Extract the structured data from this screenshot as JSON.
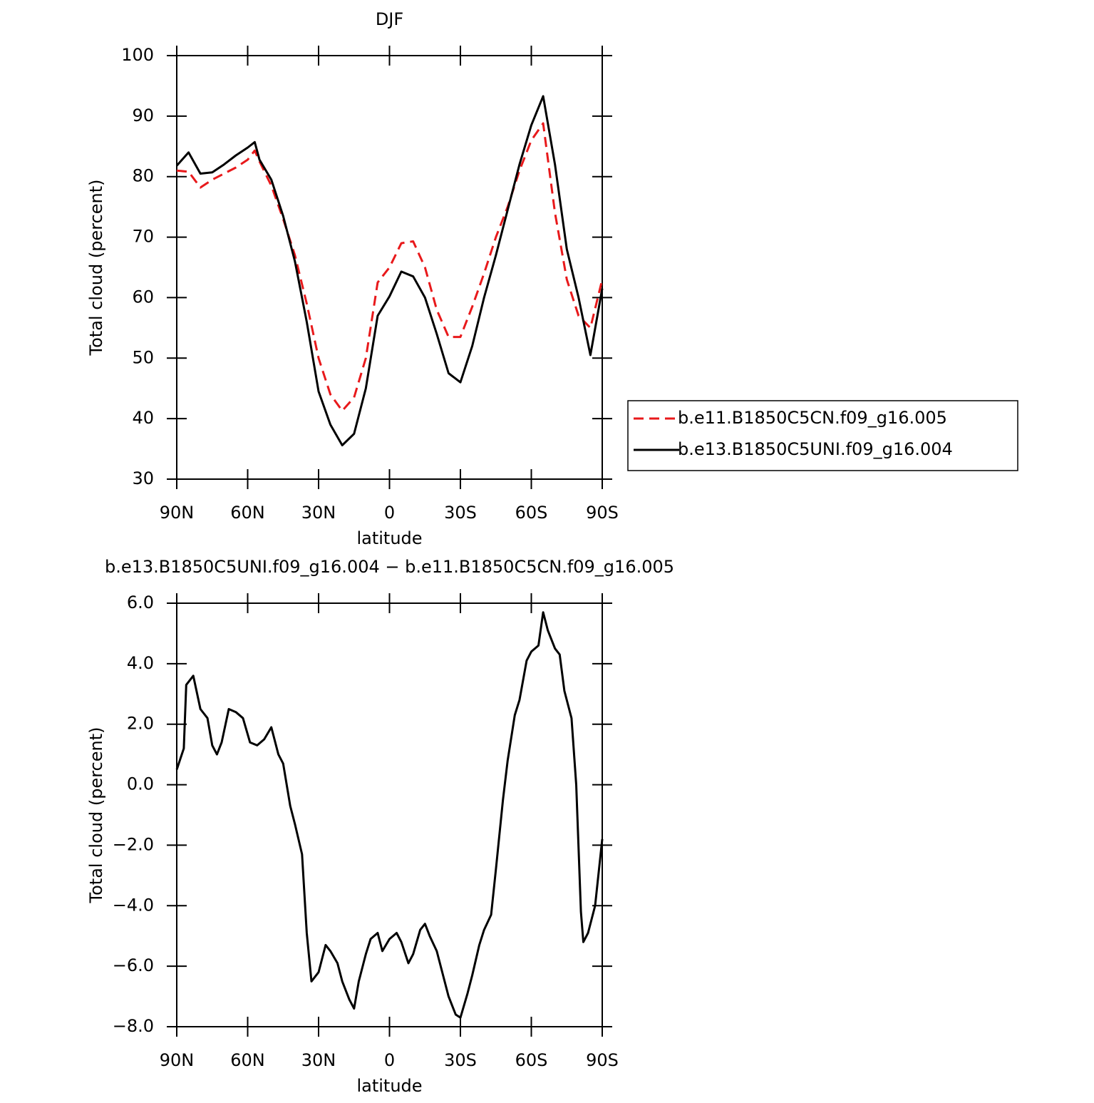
{
  "chart_data": [
    {
      "type": "line",
      "title": "DJF",
      "x_label": "latitude",
      "y_label": "Total cloud (percent)",
      "xlim": [
        90,
        -90
      ],
      "xticks": [
        {
          "value": 90,
          "label": "90N"
        },
        {
          "value": 60,
          "label": "60N"
        },
        {
          "value": 30,
          "label": "30N"
        },
        0,
        {
          "value": -30,
          "label": "30S"
        },
        {
          "value": -60,
          "label": "60S"
        },
        {
          "value": -90,
          "label": "90S"
        }
      ],
      "ylim": [
        30,
        100
      ],
      "yticks": [
        30,
        40,
        50,
        60,
        70,
        80,
        90,
        100
      ],
      "legend": "right",
      "x": [
        90,
        85,
        80,
        75,
        70,
        65,
        60,
        57,
        55,
        50,
        45,
        40,
        35,
        30,
        25,
        20,
        15,
        10,
        5,
        0,
        -5,
        -10,
        -15,
        -20,
        -25,
        -30,
        -35,
        -40,
        -45,
        -50,
        -55,
        -60,
        -65,
        -70,
        -75,
        -80,
        -85,
        -90
      ],
      "series": [
        {
          "name": "b.e11.B1850C5CN.f09_g16.005",
          "color": "#e8191b",
          "dash": true,
          "values": [
            81,
            80.8,
            78.2,
            79.5,
            80.5,
            81.5,
            82.8,
            84.3,
            82.5,
            78.5,
            73,
            67,
            59,
            50,
            44,
            41.3,
            43.5,
            50,
            62.5,
            65,
            69,
            69.3,
            65,
            58,
            53.5,
            53.5,
            58.5,
            64,
            70,
            75,
            81,
            86,
            88.8,
            74,
            63,
            57,
            55,
            63
          ]
        },
        {
          "name": "b.e13.B1850C5UNI.f09_g16.004",
          "color": "#000000",
          "dash": false,
          "values": [
            81.8,
            84,
            80.5,
            80.7,
            82,
            83.5,
            84.8,
            85.7,
            82.8,
            79.5,
            73.5,
            66,
            56,
            44.5,
            39,
            35.6,
            37.5,
            45,
            57,
            60.2,
            64.3,
            63.5,
            60,
            54,
            47.5,
            46,
            52,
            60,
            67,
            74.5,
            82,
            88.5,
            93.3,
            82,
            68,
            60,
            50.5,
            61.5
          ]
        }
      ]
    },
    {
      "type": "line",
      "title": "b.e13.B1850C5UNI.f09_g16.004 − b.e11.B1850C5CN.f09_g16.005",
      "x_label": "latitude",
      "y_label": "Total cloud (percent)",
      "xlim": [
        90,
        -90
      ],
      "xticks": [
        {
          "value": 90,
          "label": "90N"
        },
        {
          "value": 60,
          "label": "60N"
        },
        {
          "value": 30,
          "label": "30N"
        },
        0,
        {
          "value": -30,
          "label": "30S"
        },
        {
          "value": -60,
          "label": "60S"
        },
        {
          "value": -90,
          "label": "90S"
        }
      ],
      "ylim": [
        -8,
        6
      ],
      "yticks": [
        {
          "value": -8,
          "label": "−8.0"
        },
        {
          "value": -6,
          "label": "−6.0"
        },
        {
          "value": -4,
          "label": "−4.0"
        },
        {
          "value": -2,
          "label": "−2.0"
        },
        {
          "value": 0,
          "label": "0.0"
        },
        {
          "value": 2,
          "label": "2.0"
        },
        {
          "value": 4,
          "label": "4.0"
        },
        {
          "value": 6,
          "label": "6.0"
        }
      ],
      "x": [
        90,
        87,
        86,
        83,
        80,
        77,
        75,
        73,
        71,
        68,
        65,
        62,
        59,
        56,
        53,
        50,
        47,
        45,
        42,
        40,
        37,
        35,
        33,
        30,
        27,
        25,
        22,
        20,
        17,
        15,
        13,
        10,
        8,
        5,
        3,
        0,
        -3,
        -5,
        -8,
        -10,
        -13,
        -15,
        -17,
        -20,
        -25,
        -28,
        -30,
        -33,
        -35,
        -38,
        -40,
        -43,
        -45,
        -48,
        -50,
        -53,
        -55,
        -58,
        -60,
        -63,
        -65,
        -67,
        -70,
        -72,
        -74,
        -77,
        -79,
        -81,
        -82,
        -84,
        -87,
        -90
      ],
      "series": [
        {
          "color": "#000000",
          "dash": false,
          "values": [
            0.5,
            1.2,
            3.3,
            3.6,
            2.5,
            2.2,
            1.3,
            1.0,
            1.4,
            2.5,
            2.4,
            2.2,
            1.4,
            1.3,
            1.5,
            1.9,
            1.0,
            0.7,
            -0.7,
            -1.3,
            -2.3,
            -4.9,
            -6.5,
            -6.2,
            -5.3,
            -5.5,
            -5.9,
            -6.5,
            -7.1,
            -7.4,
            -6.5,
            -5.6,
            -5.1,
            -4.9,
            -5.5,
            -5.1,
            -4.9,
            -5.2,
            -5.9,
            -5.6,
            -4.8,
            -4.6,
            -5.0,
            -5.5,
            -7.0,
            -7.6,
            -7.7,
            -6.9,
            -6.3,
            -5.3,
            -4.8,
            -4.3,
            -2.8,
            -0.5,
            0.8,
            2.3,
            2.8,
            4.1,
            4.4,
            4.6,
            5.7,
            5.1,
            4.5,
            4.3,
            3.1,
            2.2,
            0.0,
            -4.2,
            -5.2,
            -4.9,
            -4.0,
            -1.8
          ]
        }
      ]
    }
  ]
}
